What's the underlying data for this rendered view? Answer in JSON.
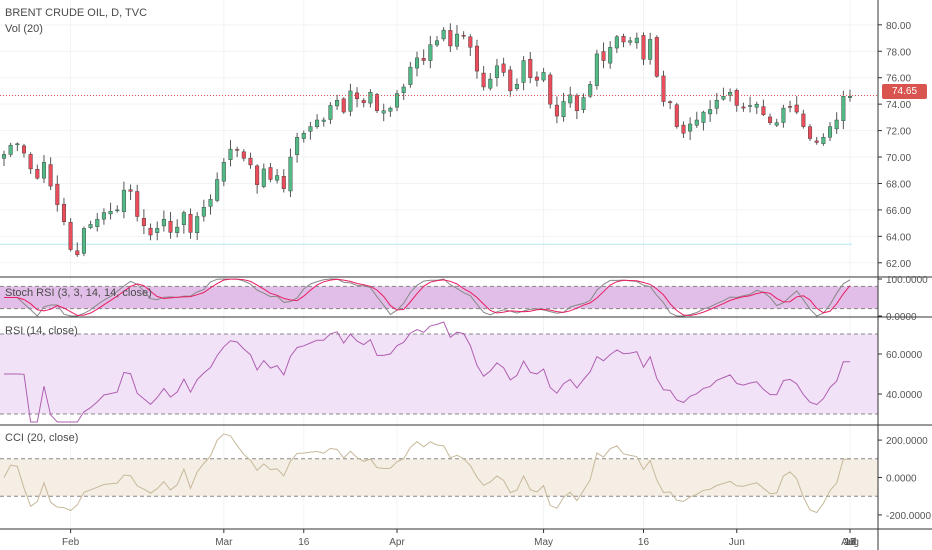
{
  "header": {
    "title": "BRENT CRUDE OIL, D, TVC",
    "volume_label": "Vol (20)"
  },
  "current_price": "74.65",
  "colors": {
    "up": "#53b987",
    "down": "#eb4d5c",
    "stoch_k": "#2196f3",
    "stoch_d": "#e91e63",
    "stoch_band": "#e1bee7",
    "rsi_line": "#b05fb0",
    "rsi_band": "#f1e2f8",
    "cci_line": "#c7b89a",
    "cci_band": "#f5eee4",
    "price_line": "#d9534f"
  },
  "chart_data": [
    {
      "type": "candlestick",
      "title": "BRENT CRUDE OIL, D, TVC",
      "ylim": [
        61,
        81.5
      ],
      "y_ticks": [
        "62.00",
        "64.00",
        "66.00",
        "68.00",
        "70.00",
        "72.00",
        "74.00",
        "76.00",
        "78.00",
        "80.00"
      ],
      "x_ticks": [
        "Feb",
        "Mar",
        "16",
        "Apr",
        "May",
        "16",
        "Jun",
        "Jul",
        "17",
        "Aug",
        "16"
      ],
      "last_price": "74.65",
      "reference_level": 63.4,
      "closes": [
        70.2,
        70.9,
        71.0,
        70.3,
        69.1,
        68.4,
        69.6,
        67.8,
        66.4,
        65.1,
        63.0,
        62.6,
        64.6,
        64.9,
        65.3,
        65.8,
        65.9,
        66.0,
        67.5,
        67.4,
        65.5,
        64.8,
        64.1,
        64.6,
        65.3,
        64.3,
        64.7,
        65.8,
        64.3,
        65.5,
        66.2,
        66.8,
        68.3,
        69.6,
        70.6,
        70.5,
        69.9,
        69.4,
        67.9,
        69.1,
        68.3,
        68.6,
        67.6,
        70.0,
        71.5,
        71.8,
        72.3,
        72.8,
        72.8,
        73.9,
        74.3,
        73.4,
        75.0,
        74.4,
        74.1,
        74.9,
        73.5,
        73.5,
        73.7,
        74.8,
        75.3,
        76.8,
        77.5,
        77.3,
        78.5,
        78.8,
        79.6,
        78.4,
        79.3,
        79.2,
        78.3,
        76.5,
        75.3,
        75.9,
        76.9,
        76.4,
        75.0,
        75.5,
        77.3,
        76.0,
        75.8,
        76.4,
        74.0,
        73.1,
        74.2,
        74.7,
        73.5,
        74.5,
        75.5,
        77.8,
        77.3,
        78.3,
        79.1,
        78.7,
        78.8,
        79.0,
        77.4,
        78.9,
        76.1,
        74.2,
        74.1,
        72.3,
        71.8,
        72.5,
        72.8,
        73.4,
        73.6,
        74.3,
        74.6,
        74.9,
        73.9,
        73.7,
        73.9,
        74.0,
        73.2,
        72.6,
        72.6,
        73.7,
        73.8,
        73.4,
        72.3,
        71.4,
        71.1,
        71.5,
        72.3,
        72.8,
        74.6,
        74.6
      ]
    },
    {
      "type": "line",
      "title": "Stoch RSI (3, 3, 14, 14, close)",
      "y_ticks": [
        "100.0000",
        "0.0000"
      ],
      "ylim": [
        0,
        100
      ],
      "bands": [
        20,
        80
      ]
    },
    {
      "type": "line",
      "title": "RSI (14, close)",
      "y_ticks": [
        "60.0000",
        "40.0000"
      ],
      "ylim": [
        25,
        78
      ],
      "bands": [
        30,
        70
      ]
    },
    {
      "type": "line",
      "title": "CCI (20, close)",
      "y_ticks": [
        "200.0000",
        "0.0000",
        "-200.0000"
      ],
      "ylim": [
        -270,
        270
      ],
      "bands": [
        -100,
        100
      ]
    }
  ]
}
